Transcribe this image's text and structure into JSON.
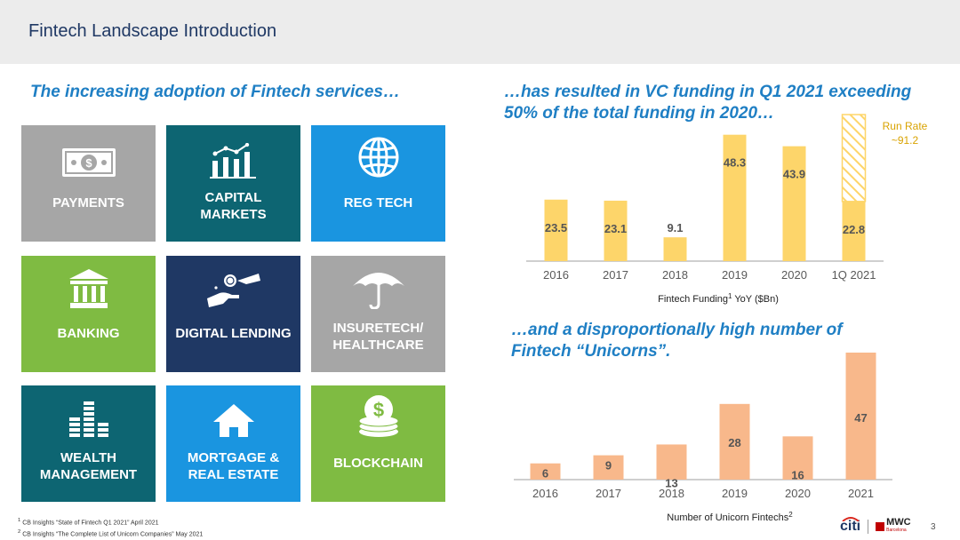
{
  "header": {
    "title": "Fintech Landscape Introduction"
  },
  "left": {
    "headline": "The increasing adoption of Fintech services…",
    "tiles": [
      {
        "label": "PAYMENTS",
        "color": "#a6a6a6",
        "icon": "money-bill-icon"
      },
      {
        "label": "CAPITAL\nMARKETS",
        "color": "#0d6572",
        "icon": "bar-chart-trend-icon"
      },
      {
        "label": "REG TECH",
        "color": "#1a95e0",
        "icon": "globe-icon"
      },
      {
        "label": "BANKING",
        "color": "#7fbb42",
        "icon": "bank-building-icon"
      },
      {
        "label": "DIGITAL LENDING",
        "color": "#1f3864",
        "icon": "hand-coin-icon"
      },
      {
        "label": "INSURETECH/\nHEALTHCARE",
        "color": "#a6a6a6",
        "icon": "umbrella-icon"
      },
      {
        "label": "WEALTH\nMANAGEMENT",
        "color": "#0d6572",
        "icon": "coin-stacks-icon"
      },
      {
        "label": "MORTGAGE &\nREAL ESTATE",
        "color": "#1a95e0",
        "icon": "house-icon"
      },
      {
        "label": "BLOCKCHAIN",
        "color": "#7fbb42",
        "icon": "dollar-coin-icon"
      }
    ]
  },
  "right": {
    "headline_1": "…has resulted in VC funding in Q1 2021 exceeding 50% of the total funding in 2020…",
    "headline_2": "…and a disproportionally high number of Fintech “Unicorns”."
  },
  "chart_data": [
    {
      "type": "bar",
      "categories": [
        "2016",
        "2017",
        "2018",
        "2019",
        "2020",
        "1Q 2021"
      ],
      "values": [
        23.5,
        23.1,
        9.1,
        48.3,
        43.9,
        22.8
      ],
      "labels": [
        "23.5",
        "23.1",
        "9.1",
        "48.3",
        "43.9",
        "22.8"
      ],
      "xlabel": "Fintech Funding",
      "xlabel_sup": "1",
      "xlabel_suffix": " YoY ($Bn)",
      "ylim": [
        0,
        56
      ],
      "color": "#fdd56a",
      "run_rate": {
        "label_line1": "Run Rate",
        "label_line2": "~91.2",
        "category": "1Q 2021",
        "upper_value": 56,
        "label_color": "#d9a300",
        "note": "hatched extension above 1Q 2021 bar"
      },
      "grid": false
    },
    {
      "type": "bar",
      "categories": [
        "2016",
        "2017",
        "2018",
        "2019",
        "2020",
        "2021"
      ],
      "values": [
        6,
        9,
        13,
        28,
        16,
        47
      ],
      "labels": [
        "6",
        "9",
        "13",
        "28",
        "16",
        "47"
      ],
      "xlabel": "Number of Unicorn Fintechs",
      "xlabel_sup": "2",
      "ylim": [
        0,
        47
      ],
      "color": "#f8b88b",
      "grid": false
    }
  ],
  "footnotes": [
    {
      "sup": "1",
      "text": "CB Insights “State of Fintech Q1 2021” April 2021"
    },
    {
      "sup": "2",
      "text": "CB Insights “The Complete List of Unicorn Companies” May 2021"
    }
  ],
  "footer": {
    "page_number": "3",
    "logo_1": "citi",
    "logo_2": "MWC",
    "logo_2_sub": "Barcelona"
  }
}
